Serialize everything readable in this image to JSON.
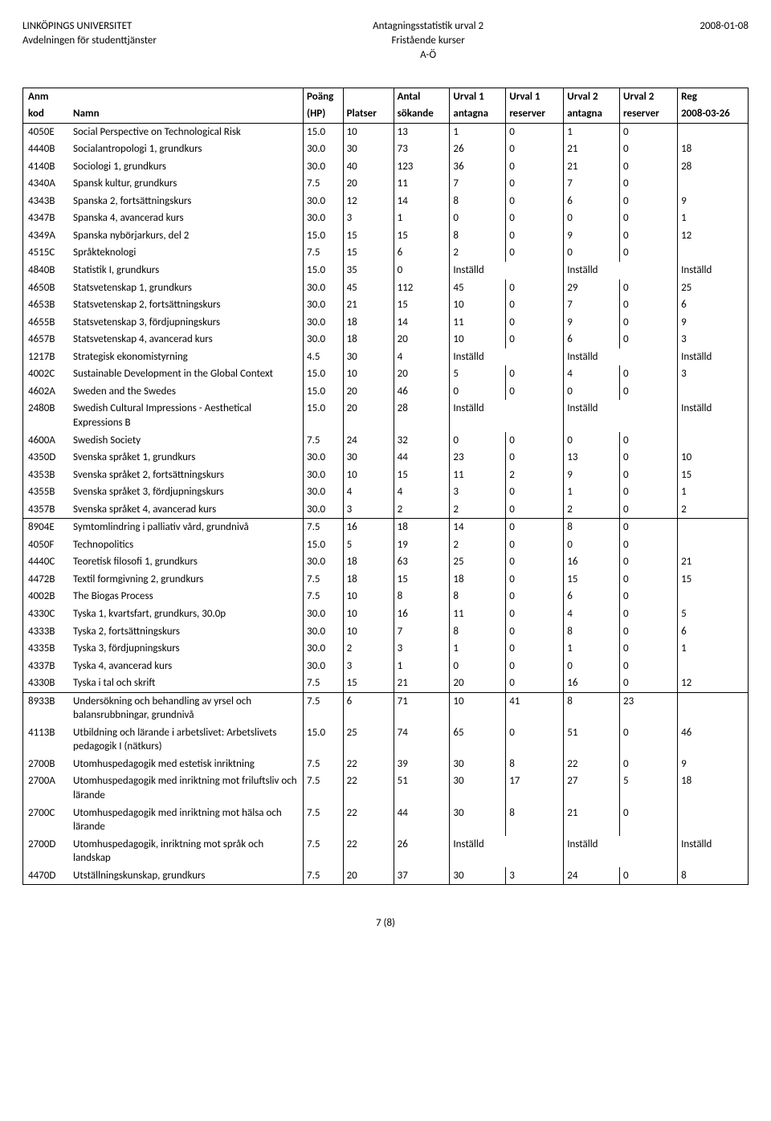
{
  "header": {
    "left_line1": "LINKÖPINGS UNIVERSITET",
    "left_line2": "Avdelningen för studenttjänster",
    "center_line1": "Antagningsstatistik urval 2",
    "center_line2": "Fristående kurser",
    "center_line3": "A-Ö",
    "right_line1": "2008-01-08"
  },
  "columns": {
    "h1": [
      "Anm",
      "",
      "Poäng",
      "",
      "Antal",
      "Urval 1",
      "Urval 1",
      "Urval 2",
      "Urval 2",
      "Reg"
    ],
    "h2": [
      "kod",
      "Namn",
      "(HP)",
      "Platser",
      "sökande",
      "antagna",
      "reserver",
      "antagna",
      "reserver",
      "2008-03-26"
    ]
  },
  "installd": "Inställd",
  "blocks": [
    [
      {
        "code": "4050E",
        "name": "Social Perspective on Technological Risk",
        "hp": "15.0",
        "plats": "10",
        "sok": "13",
        "u1a": "1",
        "u1r": "0",
        "u2a": "1",
        "u2r": "0",
        "reg": ""
      },
      {
        "code": "4440B",
        "name": "Socialantropologi 1, grundkurs",
        "hp": "30.0",
        "plats": "30",
        "sok": "73",
        "u1a": "26",
        "u1r": "0",
        "u2a": "21",
        "u2r": "0",
        "reg": "18"
      },
      {
        "code": "4140B",
        "name": "Sociologi 1, grundkurs",
        "hp": "30.0",
        "plats": "40",
        "sok": "123",
        "u1a": "36",
        "u1r": "0",
        "u2a": "21",
        "u2r": "0",
        "reg": "28"
      },
      {
        "code": "4340A",
        "name": "Spansk kultur, grundkurs",
        "hp": "7.5",
        "plats": "20",
        "sok": "11",
        "u1a": "7",
        "u1r": "0",
        "u2a": "7",
        "u2r": "0",
        "reg": ""
      },
      {
        "code": "4343B",
        "name": "Spanska 2, fortsättningskurs",
        "hp": "30.0",
        "plats": "12",
        "sok": "14",
        "u1a": "8",
        "u1r": "0",
        "u2a": "6",
        "u2r": "0",
        "reg": "9"
      },
      {
        "code": "4347B",
        "name": "Spanska 4, avancerad kurs",
        "hp": "30.0",
        "plats": "3",
        "sok": "1",
        "u1a": "0",
        "u1r": "0",
        "u2a": "0",
        "u2r": "0",
        "reg": "1"
      },
      {
        "code": "4349A",
        "name": "Spanska nybörjarkurs, del 2",
        "hp": "15.0",
        "plats": "15",
        "sok": "15",
        "u1a": "8",
        "u1r": "0",
        "u2a": "9",
        "u2r": "0",
        "reg": "12"
      },
      {
        "code": "4515C",
        "name": "Språkteknologi",
        "hp": "7.5",
        "plats": "15",
        "sok": "6",
        "u1a": "2",
        "u1r": "0",
        "u2a": "0",
        "u2r": "0",
        "reg": ""
      },
      {
        "code": "4840B",
        "name": "Statistik I, grundkurs",
        "hp": "15.0",
        "plats": "35",
        "sok": "0",
        "installd": true
      },
      {
        "code": "4650B",
        "name": "Statsvetenskap 1, grundkurs",
        "hp": "30.0",
        "plats": "45",
        "sok": "112",
        "u1a": "45",
        "u1r": "0",
        "u2a": "29",
        "u2r": "0",
        "reg": "25"
      },
      {
        "code": "4653B",
        "name": "Statsvetenskap 2, fortsättningskurs",
        "hp": "30.0",
        "plats": "21",
        "sok": "15",
        "u1a": "10",
        "u1r": "0",
        "u2a": "7",
        "u2r": "0",
        "reg": "6"
      },
      {
        "code": "4655B",
        "name": "Statsvetenskap 3, fördjupningskurs",
        "hp": "30.0",
        "plats": "18",
        "sok": "14",
        "u1a": "11",
        "u1r": "0",
        "u2a": "9",
        "u2r": "0",
        "reg": "9"
      },
      {
        "code": "4657B",
        "name": "Statsvetenskap 4, avancerad kurs",
        "hp": "30.0",
        "plats": "18",
        "sok": "20",
        "u1a": "10",
        "u1r": "0",
        "u2a": "6",
        "u2r": "0",
        "reg": "3"
      },
      {
        "code": "1217B",
        "name": "Strategisk ekonomistyrning",
        "hp": "4.5",
        "plats": "30",
        "sok": "4",
        "installd": true
      },
      {
        "code": "4002C",
        "name": "Sustainable Development in the Global Context",
        "hp": "15.0",
        "plats": "10",
        "sok": "20",
        "u1a": "5",
        "u1r": "0",
        "u2a": "4",
        "u2r": "0",
        "reg": "3"
      },
      {
        "code": "4602A",
        "name": "Sweden and the Swedes",
        "hp": "15.0",
        "plats": "20",
        "sok": "46",
        "u1a": "0",
        "u1r": "0",
        "u2a": "0",
        "u2r": "0",
        "reg": ""
      },
      {
        "code": "2480B",
        "name": "Swedish Cultural Impressions - Aesthetical Expressions B",
        "hp": "15.0",
        "plats": "20",
        "sok": "28",
        "installd": true
      },
      {
        "code": "4600A",
        "name": "Swedish Society",
        "hp": "7.5",
        "plats": "24",
        "sok": "32",
        "u1a": "0",
        "u1r": "0",
        "u2a": "0",
        "u2r": "0",
        "reg": ""
      },
      {
        "code": "4350D",
        "name": "Svenska språket 1, grundkurs",
        "hp": "30.0",
        "plats": "30",
        "sok": "44",
        "u1a": "23",
        "u1r": "0",
        "u2a": "13",
        "u2r": "0",
        "reg": "10"
      },
      {
        "code": "4353B",
        "name": "Svenska språket 2, fortsättningskurs",
        "hp": "30.0",
        "plats": "10",
        "sok": "15",
        "u1a": "11",
        "u1r": "2",
        "u2a": "9",
        "u2r": "0",
        "reg": "15"
      },
      {
        "code": "4355B",
        "name": "Svenska språket 3, fördjupningskurs",
        "hp": "30.0",
        "plats": "4",
        "sok": "4",
        "u1a": "3",
        "u1r": "0",
        "u2a": "1",
        "u2r": "0",
        "reg": "1"
      },
      {
        "code": "4357B",
        "name": "Svenska språket 4, avancerad kurs",
        "hp": "30.0",
        "plats": "3",
        "sok": "2",
        "u1a": "2",
        "u1r": "0",
        "u2a": "2",
        "u2r": "0",
        "reg": "2"
      }
    ],
    [
      {
        "code": "8904E",
        "name": "Symtomlindring i palliativ vård, grundnivå",
        "hp": "7.5",
        "plats": "16",
        "sok": "18",
        "u1a": "14",
        "u1r": "0",
        "u2a": "8",
        "u2r": "0",
        "reg": ""
      },
      {
        "code": "4050F",
        "name": "Technopolitics",
        "hp": "15.0",
        "plats": "5",
        "sok": "19",
        "u1a": "2",
        "u1r": "0",
        "u2a": "0",
        "u2r": "0",
        "reg": ""
      },
      {
        "code": "4440C",
        "name": "Teoretisk filosofi 1, grundkurs",
        "hp": "30.0",
        "plats": "18",
        "sok": "63",
        "u1a": "25",
        "u1r": "0",
        "u2a": "16",
        "u2r": "0",
        "reg": "21"
      },
      {
        "code": "4472B",
        "name": "Textil formgivning 2, grundkurs",
        "hp": "7.5",
        "plats": "18",
        "sok": "15",
        "u1a": "18",
        "u1r": "0",
        "u2a": "15",
        "u2r": "0",
        "reg": "15"
      },
      {
        "code": "4002B",
        "name": "The Biogas Process",
        "hp": "7.5",
        "plats": "10",
        "sok": "8",
        "u1a": "8",
        "u1r": "0",
        "u2a": "6",
        "u2r": "0",
        "reg": ""
      },
      {
        "code": "4330C",
        "name": "Tyska 1, kvartsfart, grundkurs, 30.0p",
        "hp": "30.0",
        "plats": "10",
        "sok": "16",
        "u1a": "11",
        "u1r": "0",
        "u2a": "4",
        "u2r": "0",
        "reg": "5"
      },
      {
        "code": "4333B",
        "name": "Tyska 2, fortsättningskurs",
        "hp": "30.0",
        "plats": "10",
        "sok": "7",
        "u1a": "8",
        "u1r": "0",
        "u2a": "8",
        "u2r": "0",
        "reg": "6"
      },
      {
        "code": "4335B",
        "name": "Tyska 3, fördjupningskurs",
        "hp": "30.0",
        "plats": "2",
        "sok": "3",
        "u1a": "1",
        "u1r": "0",
        "u2a": "1",
        "u2r": "0",
        "reg": "1"
      },
      {
        "code": "4337B",
        "name": "Tyska 4, avancerad kurs",
        "hp": "30.0",
        "plats": "3",
        "sok": "1",
        "u1a": "0",
        "u1r": "0",
        "u2a": "0",
        "u2r": "0",
        "reg": ""
      },
      {
        "code": "4330B",
        "name": "Tyska i tal och skrift",
        "hp": "7.5",
        "plats": "15",
        "sok": "21",
        "u1a": "20",
        "u1r": "0",
        "u2a": "16",
        "u2r": "0",
        "reg": "12"
      }
    ],
    [
      {
        "code": "8933B",
        "name": "Undersökning och behandling av yrsel och balansrubbningar, grundnivå",
        "hp": "7.5",
        "plats": "6",
        "sok": "71",
        "u1a": "10",
        "u1r": "41",
        "u2a": "8",
        "u2r": "23",
        "reg": ""
      },
      {
        "code": "4113B",
        "name": "Utbildning och lärande i arbetslivet: Arbetslivets pedagogik I (nätkurs)",
        "hp": "15.0",
        "plats": "25",
        "sok": "74",
        "u1a": "65",
        "u1r": "0",
        "u2a": "51",
        "u2r": "0",
        "reg": "46"
      },
      {
        "code": "2700B",
        "name": "Utomhuspedagogik med estetisk inriktning",
        "hp": "7.5",
        "plats": "22",
        "sok": "39",
        "u1a": "30",
        "u1r": "8",
        "u2a": "22",
        "u2r": "0",
        "reg": "9"
      },
      {
        "code": "2700A",
        "name": "Utomhuspedagogik med inriktning mot friluftsliv och lärande",
        "hp": "7.5",
        "plats": "22",
        "sok": "51",
        "u1a": "30",
        "u1r": "17",
        "u2a": "27",
        "u2r": "5",
        "reg": "18"
      },
      {
        "code": "2700C",
        "name": "Utomhuspedagogik med inriktning mot hälsa och lärande",
        "hp": "7.5",
        "plats": "22",
        "sok": "44",
        "u1a": "30",
        "u1r": "8",
        "u2a": "21",
        "u2r": "0",
        "reg": ""
      },
      {
        "code": "2700D",
        "name": "Utomhuspedagogik, inriktning mot språk och landskap",
        "hp": "7.5",
        "plats": "22",
        "sok": "26",
        "installd": true
      },
      {
        "code": "4470D",
        "name": "Utställningskunskap, grundkurs",
        "hp": "7.5",
        "plats": "20",
        "sok": "37",
        "u1a": "30",
        "u1r": "3",
        "u2a": "24",
        "u2r": "0",
        "reg": "8"
      }
    ]
  ],
  "footer": "7 (8)"
}
